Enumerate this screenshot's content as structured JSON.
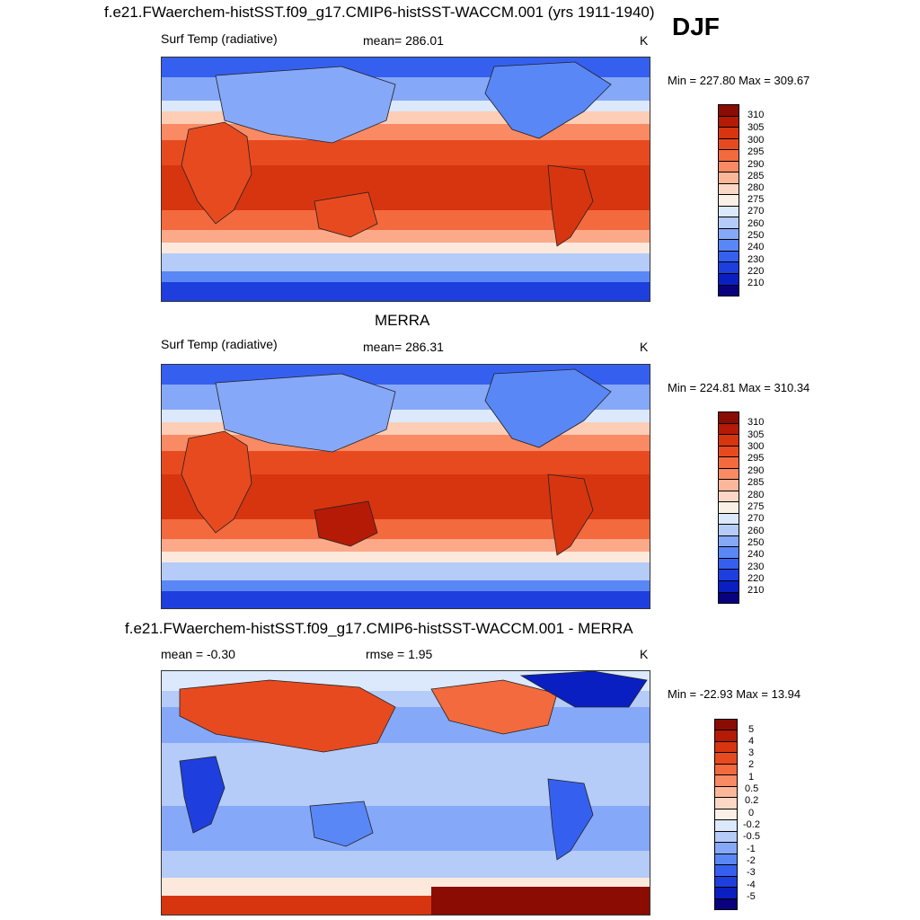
{
  "figure": {
    "season": "DJF",
    "colormap_abs": [
      "#08007f",
      "#0a1fc1",
      "#1e3fde",
      "#3560ef",
      "#5a87f6",
      "#86a8f8",
      "#b5cbf8",
      "#dce8fb",
      "#fde9dc",
      "#fdcdb5",
      "#fca98a",
      "#f98a63",
      "#f26a3e",
      "#e84a1f",
      "#d73510",
      "#b51a06",
      "#8a0c02"
    ],
    "colormap_diff": [
      "#08007f",
      "#0a1fc1",
      "#1e3fde",
      "#3560ef",
      "#5a87f6",
      "#86a8f8",
      "#b5cbf8",
      "#dce8fb",
      "#fde9dc",
      "#fdcdb5",
      "#fca98a",
      "#f98a63",
      "#f26a3e",
      "#e84a1f",
      "#d73510",
      "#b51a06",
      "#8a0c02"
    ]
  },
  "panels": [
    {
      "title": "f.e21.FWaerchem-histSST.f09_g17.CMIP6-histSST-WACCM.001 (yrs 1911-1940)",
      "left_label": "Surf Temp (radiative)",
      "center_label": "mean= 286.01",
      "units": "K",
      "minmax": "Min = 227.80 Max = 309.67",
      "colorbar_labels": [
        "310",
        "305",
        "300",
        "295",
        "290",
        "285",
        "280",
        "275",
        "270",
        "260",
        "250",
        "240",
        "230",
        "220",
        "210"
      ]
    },
    {
      "title": "MERRA",
      "left_label": "Surf Temp (radiative)",
      "center_label": "mean= 286.31",
      "units": "K",
      "minmax": "Min = 224.81 Max = 310.34",
      "colorbar_labels": [
        "310",
        "305",
        "300",
        "295",
        "290",
        "285",
        "280",
        "275",
        "270",
        "260",
        "250",
        "240",
        "230",
        "220",
        "210"
      ]
    },
    {
      "title": "f.e21.FWaerchem-histSST.f09_g17.CMIP6-histSST-WACCM.001 - MERRA",
      "left_label": "mean =  -0.30",
      "center_label": "rmse =   1.95",
      "units": "K",
      "minmax": "Min = -22.93 Max =  13.94",
      "colorbar_labels": [
        "5",
        "4",
        "3",
        "2",
        "1",
        "0.5",
        "0.2",
        "0",
        "-0.2",
        "-0.5",
        "-1",
        "-2",
        "-3",
        "-4",
        "-5"
      ]
    }
  ]
}
